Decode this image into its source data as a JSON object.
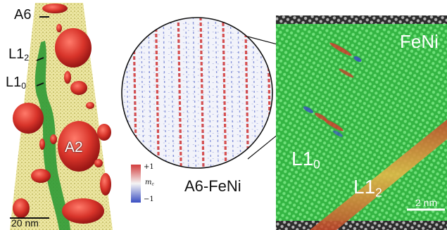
{
  "panel_left": {
    "labels": {
      "a6": "A6",
      "l12_main": "L1",
      "l12_sub": "2",
      "l10_main": "L1",
      "l10_sub": "0",
      "a2": "A2"
    },
    "scale_text": "20 nm",
    "colors": {
      "precipitate": "#d8342a",
      "cluster": "#2f9a35",
      "matrix": "#d9d07a"
    }
  },
  "panel_middle": {
    "colorbar": {
      "max_label": "+1",
      "var_label": "m",
      "var_sub": "c",
      "min_label": "−1"
    },
    "title": "A6-FeNi",
    "colors": {
      "positive": "#d23c3c",
      "negative": "#3a4ec2"
    }
  },
  "panel_right": {
    "labels": {
      "feni": "FeNi",
      "l10_main": "L1",
      "l10_sub": "0",
      "l12_main": "L1",
      "l12_sub": "2"
    },
    "scale_text": "2 nm",
    "colors": {
      "lattice": "#3bbf46",
      "boundary": "#d8a23a"
    }
  }
}
